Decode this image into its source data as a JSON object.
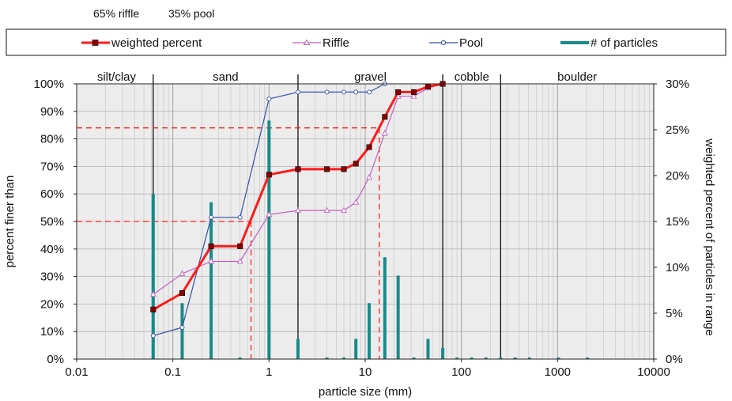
{
  "header": {
    "riffle_pct": "65% riffle",
    "pool_pct": "35% pool"
  },
  "chart_data": {
    "type": "line",
    "xlabel": "particle size (mm)",
    "ylabel": "percent finer than",
    "y2label": "weighted percent of particles in range",
    "x_scale": "log",
    "xlim": [
      0.01,
      10000
    ],
    "ylim": [
      0,
      100
    ],
    "y2lim": [
      0,
      30
    ],
    "x_ticks": [
      "0.01",
      "0.1",
      "1",
      "10",
      "100",
      "1000",
      "10000"
    ],
    "y_ticks": [
      "0%",
      "10%",
      "20%",
      "30%",
      "40%",
      "50%",
      "60%",
      "70%",
      "80%",
      "90%",
      "100%"
    ],
    "y2_ticks": [
      "0%",
      "5%",
      "10%",
      "15%",
      "20%",
      "25%",
      "30%"
    ],
    "grid": true,
    "legend": {
      "placement": "top",
      "entries": [
        "weighted percent",
        "Riffle",
        "Pool",
        "# of particles"
      ]
    },
    "class_labels": [
      "silt/clay",
      "sand",
      "gravel",
      "cobble",
      "boulder"
    ],
    "class_boundaries": [
      0.0625,
      2,
      64,
      256
    ],
    "reference_lines": [
      {
        "y": 50,
        "x": 0.65
      },
      {
        "y": 84,
        "x": 14
      }
    ],
    "colors": {
      "weighted": "#ff1a1a",
      "riffle": "#c060c0",
      "pool": "#3050a8",
      "bars": "#1a8a8a",
      "reference": "#ff2020",
      "plot_bg": "#ececec"
    },
    "series": [
      {
        "name": "weighted percent",
        "x": [
          0.0625,
          0.125,
          0.25,
          0.5,
          1,
          2,
          4,
          6,
          8,
          11,
          16,
          22,
          32,
          45,
          64
        ],
        "y": [
          18,
          24,
          41,
          41,
          67,
          69,
          69,
          69,
          71,
          77,
          88,
          97,
          97,
          99,
          100
        ]
      },
      {
        "name": "Riffle",
        "x": [
          0.0625,
          0.125,
          0.25,
          0.5,
          1,
          2,
          4,
          6,
          8,
          11,
          16,
          22,
          32,
          45,
          64
        ],
        "y": [
          23.5,
          31,
          35.5,
          35.5,
          52.5,
          54,
          54,
          54,
          57,
          66,
          82,
          95.5,
          95.5,
          98.5,
          100
        ]
      },
      {
        "name": "Pool",
        "x": [
          0.0625,
          0.125,
          0.25,
          0.5,
          1,
          2,
          4,
          6,
          8,
          11,
          16
        ],
        "y": [
          8.5,
          11.5,
          51.5,
          51.5,
          94.5,
          97,
          97,
          97,
          97,
          97,
          100
        ]
      },
      {
        "name": "# of particles",
        "x": [
          0.0625,
          0.125,
          0.25,
          0.5,
          1,
          2,
          4,
          6,
          8,
          11,
          16,
          22,
          32,
          45,
          64,
          90,
          128,
          180,
          256,
          362,
          512,
          1024,
          2048
        ],
        "y2": [
          18,
          6.1,
          17.1,
          0,
          26,
          2.2,
          0,
          0,
          2.2,
          6.1,
          11.1,
          9.1,
          0,
          2.2,
          1.2,
          0,
          0,
          0,
          0,
          0,
          0,
          0,
          0
        ]
      }
    ]
  }
}
